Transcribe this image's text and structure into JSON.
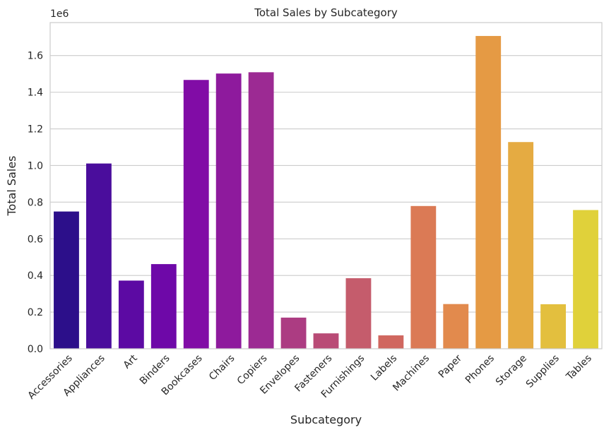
{
  "chart_data": {
    "type": "bar",
    "title": "Total Sales by Subcategory",
    "xlabel": "Subcategory",
    "ylabel": "Total Sales",
    "y_offset_label": "1e6",
    "ylim": [
      0,
      1.78
    ],
    "yticks": [
      0.0,
      0.2,
      0.4,
      0.6,
      0.8,
      1.0,
      1.2,
      1.4,
      1.6
    ],
    "ytick_labels": [
      "0.0",
      "0.2",
      "0.4",
      "0.6",
      "0.8",
      "1.0",
      "1.2",
      "1.4",
      "1.6"
    ],
    "grid": "horizontal",
    "categories": [
      "Accessories",
      "Appliances",
      "Art",
      "Binders",
      "Bookcases",
      "Chairs",
      "Copiers",
      "Envelopes",
      "Fasteners",
      "Furnishings",
      "Labels",
      "Machines",
      "Paper",
      "Phones",
      "Storage",
      "Supplies",
      "Tables"
    ],
    "values": [
      0.749,
      1.011,
      0.372,
      0.462,
      1.467,
      1.502,
      1.509,
      0.17,
      0.084,
      0.385,
      0.073,
      0.779,
      0.244,
      1.707,
      1.128,
      0.243,
      0.757
    ],
    "colors": [
      "#2c0f8a",
      "#4a0d9c",
      "#5c0aa3",
      "#6e08a8",
      "#810ca6",
      "#8e1a9d",
      "#9c2a93",
      "#ac3c82",
      "#b94b76",
      "#c55c6c",
      "#d0675f",
      "#db7a55",
      "#e28a4d",
      "#e59a44",
      "#e5ab42",
      "#e3bf3e",
      "#e0d13a"
    ]
  }
}
